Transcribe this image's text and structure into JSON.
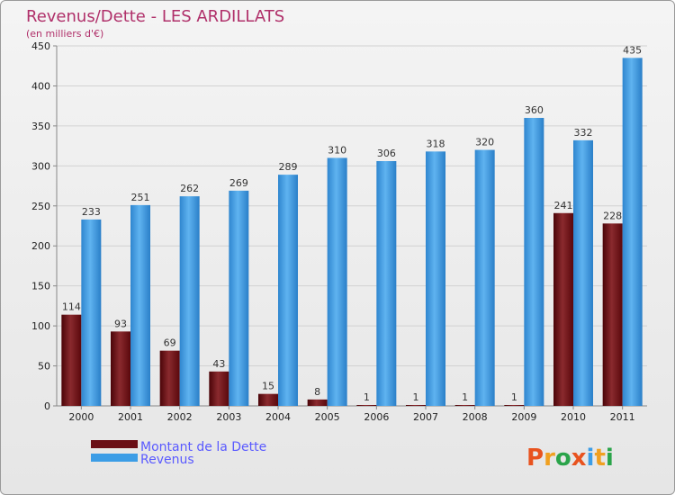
{
  "chart_data": {
    "type": "bar",
    "title": "Revenus/Dette - LES ARDILLATS",
    "subtitle": "(en milliers d'€)",
    "categories": [
      "2000",
      "2001",
      "2002",
      "2003",
      "2004",
      "2005",
      "2006",
      "2007",
      "2008",
      "2009",
      "2010",
      "2011"
    ],
    "series": [
      {
        "name": "Montant de la Dette",
        "color": "#6b0f16",
        "values": [
          114,
          93,
          69,
          43,
          15,
          8,
          1,
          1,
          1,
          1,
          241,
          228
        ]
      },
      {
        "name": "Revenus",
        "color": "#3c9de6",
        "values": [
          233,
          251,
          262,
          269,
          289,
          310,
          306,
          318,
          320,
          360,
          332,
          435
        ]
      }
    ],
    "ylim": [
      0,
      450
    ],
    "yticks": [
      0,
      50,
      100,
      150,
      200,
      250,
      300,
      350,
      400,
      450
    ],
    "grid": true,
    "legend_position": "bottom-left"
  },
  "logo": {
    "letters": [
      "P",
      "r",
      "o",
      "x",
      "i",
      "t",
      "i"
    ],
    "colors": [
      "#e8531f",
      "#f0a020",
      "#2aa44a",
      "#e8531f",
      "#3c9de6",
      "#f0a020",
      "#2aa44a"
    ]
  }
}
